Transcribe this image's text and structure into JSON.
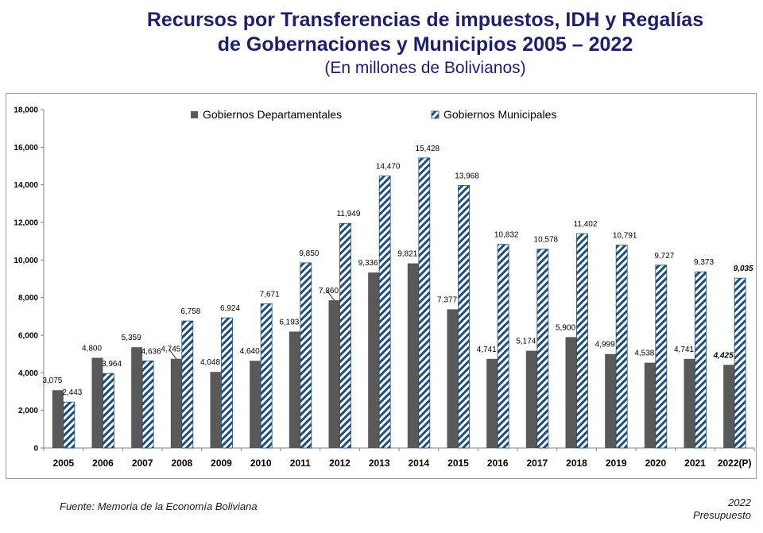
{
  "title_line1": "Recursos por Transferencias de impuestos, IDH y Regalías",
  "title_line2": "de Gobernaciones y Municipios 2005 – 2022",
  "subtitle": "(En millones de Bolivianos)",
  "source": "Fuente: Memoria de la Economía Boliviana",
  "corner_note": {
    "line1": "2022",
    "line2": "Presupuesto"
  },
  "colors": {
    "departamentales": "#595959",
    "municipales_hatch": "#1f4e79",
    "title": "#1f1f66"
  },
  "chart_data": {
    "type": "bar",
    "categories": [
      "2005",
      "2006",
      "2007",
      "2008",
      "2009",
      "2010",
      "2011",
      "2012",
      "2013",
      "2014",
      "2015",
      "2016",
      "2017",
      "2018",
      "2019",
      "2020",
      "2021",
      "2022(P)"
    ],
    "series": [
      {
        "name": "Gobiernos Departamentales",
        "values": [
          3075,
          4800,
          5359,
          4745,
          4048,
          4640,
          6193,
          7860,
          9336,
          9821,
          7377,
          4741,
          5174,
          5900,
          4999,
          4538,
          4741,
          4425
        ],
        "labels": [
          "3,075",
          "4,800",
          "5,359",
          "4,745",
          "4,048",
          "4,640",
          "6,193",
          "7,860",
          "9,336",
          "9,821",
          "7.377",
          "4,741",
          "5,174",
          "5,900",
          "4,999",
          "4,538",
          "4,741",
          "4,425"
        ]
      },
      {
        "name": "Gobiernos Municipales",
        "values": [
          2443,
          3964,
          4636,
          6758,
          6924,
          7671,
          9850,
          11949,
          14470,
          15428,
          13968,
          10832,
          10578,
          11402,
          10791,
          9727,
          9373,
          9035
        ],
        "labels": [
          "2,443",
          "3,964",
          "4,636",
          "6,758",
          "6,924",
          "7,671",
          "9,850",
          "11,949",
          "14,470",
          "15,428",
          "13,968",
          "10,832",
          "10,578",
          "11,402",
          "10,791",
          "9,727",
          "9,373",
          "9,035"
        ]
      }
    ],
    "ylim": [
      0,
      18000
    ],
    "yticks": [
      0,
      2000,
      4000,
      6000,
      8000,
      10000,
      12000,
      14000,
      16000,
      18000
    ],
    "ytick_labels": [
      "0",
      "2,000",
      "4,000",
      "6,000",
      "8,000",
      "10,000",
      "12,000",
      "14,000",
      "16,000",
      "18,000"
    ],
    "legend_position": "top",
    "grid": false
  }
}
